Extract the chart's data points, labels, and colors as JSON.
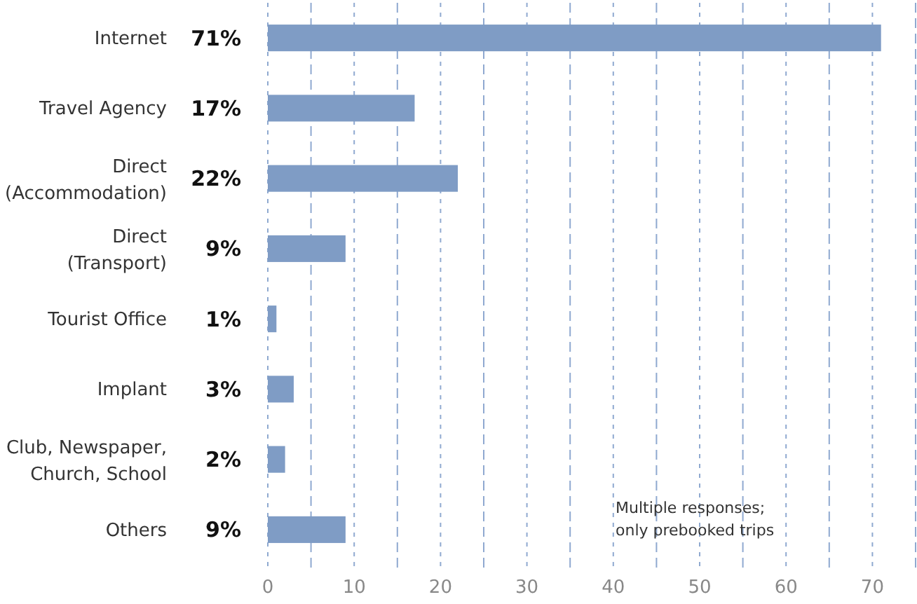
{
  "chart_data": {
    "type": "bar",
    "orientation": "horizontal",
    "categories": [
      "Internet",
      "Travel Agency",
      "Direct\n(Accommodation)",
      "Direct\n(Transport)",
      "Tourist Office",
      "Implant",
      "Club, Newspaper,\nChurch, School",
      "Others"
    ],
    "values": [
      71,
      17,
      22,
      9,
      1,
      3,
      2,
      9
    ],
    "value_labels": [
      "71%",
      "17%",
      "22%",
      "9%",
      "1%",
      "3%",
      "2%",
      "9%"
    ],
    "color": "#7f9cc5",
    "xlim": [
      0,
      75
    ],
    "xticks": [
      0,
      {
        "value": 5,
        "label": null
      },
      10,
      {
        "value": 15,
        "label": null
      },
      20,
      {
        "value": 25,
        "label": null
      },
      30,
      {
        "value": 35,
        "label": null
      },
      40,
      {
        "value": 45,
        "label": null
      },
      50,
      {
        "value": 55,
        "label": null
      },
      60,
      {
        "value": 65,
        "label": null
      },
      70,
      {
        "value": 75,
        "label": null
      }
    ],
    "grid": "x",
    "annotations": [
      "Multiple responses;\nonly prebooked trips"
    ]
  }
}
